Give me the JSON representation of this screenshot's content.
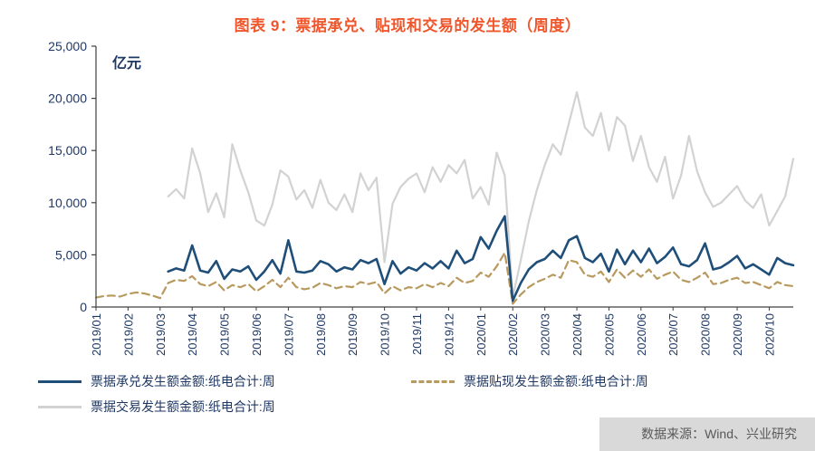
{
  "source_note": "数据来源：Wind、兴业研究",
  "colors": {
    "title": "#f0562b",
    "axis_text": "#1f3864",
    "axis_line": "#404040",
    "legend_text": "#1f3864",
    "source_bg": "#d9d9d9",
    "source_text": "#595959"
  },
  "chart_data": {
    "type": "line",
    "title": "图表 9：票据承兑、贴现和交易的发生额（周度）",
    "ylabel": "亿元",
    "ylim": [
      0,
      25000
    ],
    "y_ticks": [
      0,
      5000,
      10000,
      15000,
      20000,
      25000
    ],
    "x_tick_labels": [
      "2019/01",
      "2019/02",
      "2019/03",
      "2019/04",
      "2019/05",
      "2019/06",
      "2019/07",
      "2019/08",
      "2019/09",
      "2019/10",
      "2019/11",
      "2019/12",
      "2020/01",
      "2020/02",
      "2020/03",
      "2020/04",
      "2020/05",
      "2020/06",
      "2020/07",
      "2020/08",
      "2020/09",
      "2020/10"
    ],
    "points_per_month": 4,
    "grid": false,
    "legend_position": "bottom",
    "series": [
      {
        "name": "票据承兑发生额金额:纸电合计:周",
        "color": "#1f4e79",
        "style": "solid",
        "width": 2.6,
        "values": [
          null,
          null,
          null,
          null,
          null,
          null,
          null,
          null,
          null,
          3400,
          3700,
          3500,
          5900,
          3500,
          3300,
          4400,
          2700,
          3600,
          3400,
          3900,
          2600,
          3400,
          4500,
          3200,
          6400,
          3400,
          3300,
          3500,
          4400,
          4100,
          3400,
          3800,
          3600,
          4500,
          4200,
          4600,
          2200,
          4400,
          3200,
          3800,
          3500,
          4200,
          3700,
          4400,
          3700,
          5400,
          4200,
          4600,
          6700,
          5600,
          7300,
          8700,
          600,
          2300,
          3600,
          4300,
          4600,
          5400,
          4700,
          6400,
          6800,
          4700,
          4300,
          5100,
          3400,
          5500,
          4100,
          5400,
          4300,
          5600,
          4200,
          4800,
          5700,
          4100,
          3900,
          4500,
          6100,
          3600,
          3800,
          4300,
          4900,
          3700,
          4100,
          3600,
          3100,
          4700,
          4200,
          4000
        ]
      },
      {
        "name": "票据贴现发生额金额:纸电合计:周",
        "color": "#b89a5e",
        "style": "dashed",
        "width": 2.2,
        "values": [
          900,
          1050,
          1100,
          1000,
          1250,
          1400,
          1300,
          1100,
          850,
          2300,
          2600,
          2500,
          2950,
          2200,
          2000,
          2400,
          1600,
          2100,
          1900,
          2200,
          1500,
          2000,
          2600,
          1900,
          2800,
          1900,
          1700,
          1850,
          2300,
          2100,
          1800,
          2000,
          1900,
          2400,
          2200,
          2400,
          1300,
          2000,
          1600,
          1900,
          1800,
          2200,
          1900,
          2300,
          2000,
          2800,
          2300,
          2500,
          3300,
          2900,
          3900,
          5200,
          300,
          1200,
          1900,
          2400,
          2700,
          3100,
          2800,
          4500,
          4300,
          3100,
          2900,
          3400,
          2400,
          3600,
          2800,
          3500,
          2900,
          3600,
          2700,
          3100,
          3400,
          2600,
          2400,
          2800,
          3300,
          2200,
          2300,
          2600,
          2800,
          2300,
          2400,
          2100,
          1800,
          2400,
          2100,
          2000
        ]
      },
      {
        "name": "票据交易发生额金额:纸电合计:周",
        "color": "#d2d2d2",
        "style": "solid",
        "width": 2.2,
        "values": [
          null,
          null,
          null,
          null,
          null,
          null,
          null,
          null,
          null,
          10600,
          11300,
          10400,
          15200,
          12800,
          9100,
          10900,
          8600,
          15600,
          13100,
          11000,
          8300,
          7800,
          9800,
          13100,
          12500,
          10300,
          11200,
          9500,
          12200,
          10000,
          9300,
          10800,
          9100,
          12800,
          11200,
          12400,
          4300,
          9900,
          11500,
          12300,
          12800,
          11000,
          13400,
          12000,
          13600,
          12800,
          14100,
          10400,
          11500,
          9800,
          14800,
          12600,
          900,
          4500,
          8200,
          11200,
          13600,
          15600,
          14600,
          17600,
          20600,
          17200,
          16400,
          18600,
          15000,
          18200,
          17400,
          14000,
          16400,
          13400,
          12000,
          14400,
          10400,
          12600,
          16400,
          13000,
          11000,
          9600,
          10000,
          10800,
          11600,
          10200,
          9500,
          10800,
          7800,
          9200,
          10600,
          14200
        ]
      }
    ]
  }
}
